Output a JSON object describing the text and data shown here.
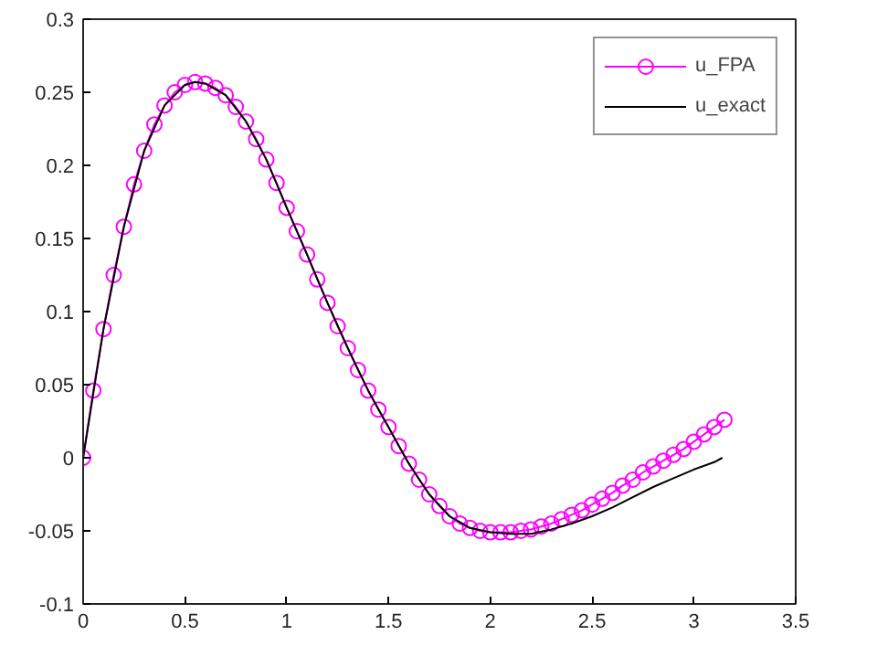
{
  "chart_data": {
    "type": "line",
    "xlim": [
      0,
      3.5
    ],
    "ylim": [
      -0.1,
      0.3
    ],
    "xticks": [
      0,
      0.5,
      1,
      1.5,
      2,
      2.5,
      3,
      3.5
    ],
    "yticks": [
      -0.1,
      -0.05,
      0,
      0.05,
      0.1,
      0.15,
      0.2,
      0.25,
      0.3
    ],
    "grid": false,
    "legend": "top right",
    "series": [
      {
        "name": "u_FPA",
        "color": "#ff00ff",
        "marker": "circle",
        "x": [
          0,
          0.05,
          0.1,
          0.15,
          0.2,
          0.25,
          0.3,
          0.35,
          0.4,
          0.45,
          0.5,
          0.55,
          0.6,
          0.65,
          0.7,
          0.75,
          0.8,
          0.85,
          0.9,
          0.95,
          1.0,
          1.05,
          1.1,
          1.15,
          1.2,
          1.25,
          1.3,
          1.35,
          1.4,
          1.45,
          1.5,
          1.55,
          1.6,
          1.65,
          1.7,
          1.75,
          1.8,
          1.85,
          1.9,
          1.95,
          2.0,
          2.05,
          2.1,
          2.15,
          2.2,
          2.25,
          2.3,
          2.35,
          2.4,
          2.45,
          2.5,
          2.55,
          2.6,
          2.65,
          2.7,
          2.75,
          2.8,
          2.85,
          2.9,
          2.95,
          3.0,
          3.05,
          3.1,
          3.15
        ],
        "values": [
          0,
          0.046,
          0.088,
          0.125,
          0.158,
          0.187,
          0.21,
          0.228,
          0.241,
          0.25,
          0.255,
          0.257,
          0.256,
          0.253,
          0.248,
          0.24,
          0.23,
          0.218,
          0.204,
          0.188,
          0.171,
          0.155,
          0.139,
          0.122,
          0.106,
          0.09,
          0.075,
          0.06,
          0.046,
          0.033,
          0.021,
          0.008,
          -0.004,
          -0.015,
          -0.025,
          -0.033,
          -0.04,
          -0.045,
          -0.048,
          -0.05,
          -0.051,
          -0.051,
          -0.051,
          -0.05,
          -0.049,
          -0.047,
          -0.045,
          -0.042,
          -0.039,
          -0.036,
          -0.032,
          -0.028,
          -0.024,
          -0.019,
          -0.015,
          -0.01,
          -0.006,
          -0.002,
          0.002,
          0.006,
          0.011,
          0.016,
          0.021,
          0.026
        ]
      },
      {
        "name": "u_exact",
        "color": "#000000",
        "marker": "none",
        "x": [
          0,
          0.1,
          0.2,
          0.3,
          0.4,
          0.5,
          0.55,
          0.6,
          0.7,
          0.8,
          0.9,
          1.0,
          1.1,
          1.2,
          1.3,
          1.4,
          1.5,
          1.6,
          1.7,
          1.8,
          1.9,
          2.0,
          2.1,
          2.2,
          2.3,
          2.4,
          2.5,
          2.6,
          2.7,
          2.8,
          2.9,
          3.0,
          3.1,
          3.14
        ],
        "values": [
          0,
          0.088,
          0.158,
          0.21,
          0.241,
          0.255,
          0.257,
          0.256,
          0.248,
          0.23,
          0.204,
          0.171,
          0.139,
          0.106,
          0.075,
          0.046,
          0.021,
          -0.004,
          -0.025,
          -0.04,
          -0.048,
          -0.051,
          -0.052,
          -0.052,
          -0.049,
          -0.045,
          -0.04,
          -0.034,
          -0.027,
          -0.02,
          -0.014,
          -0.008,
          -0.003,
          0
        ]
      }
    ]
  }
}
